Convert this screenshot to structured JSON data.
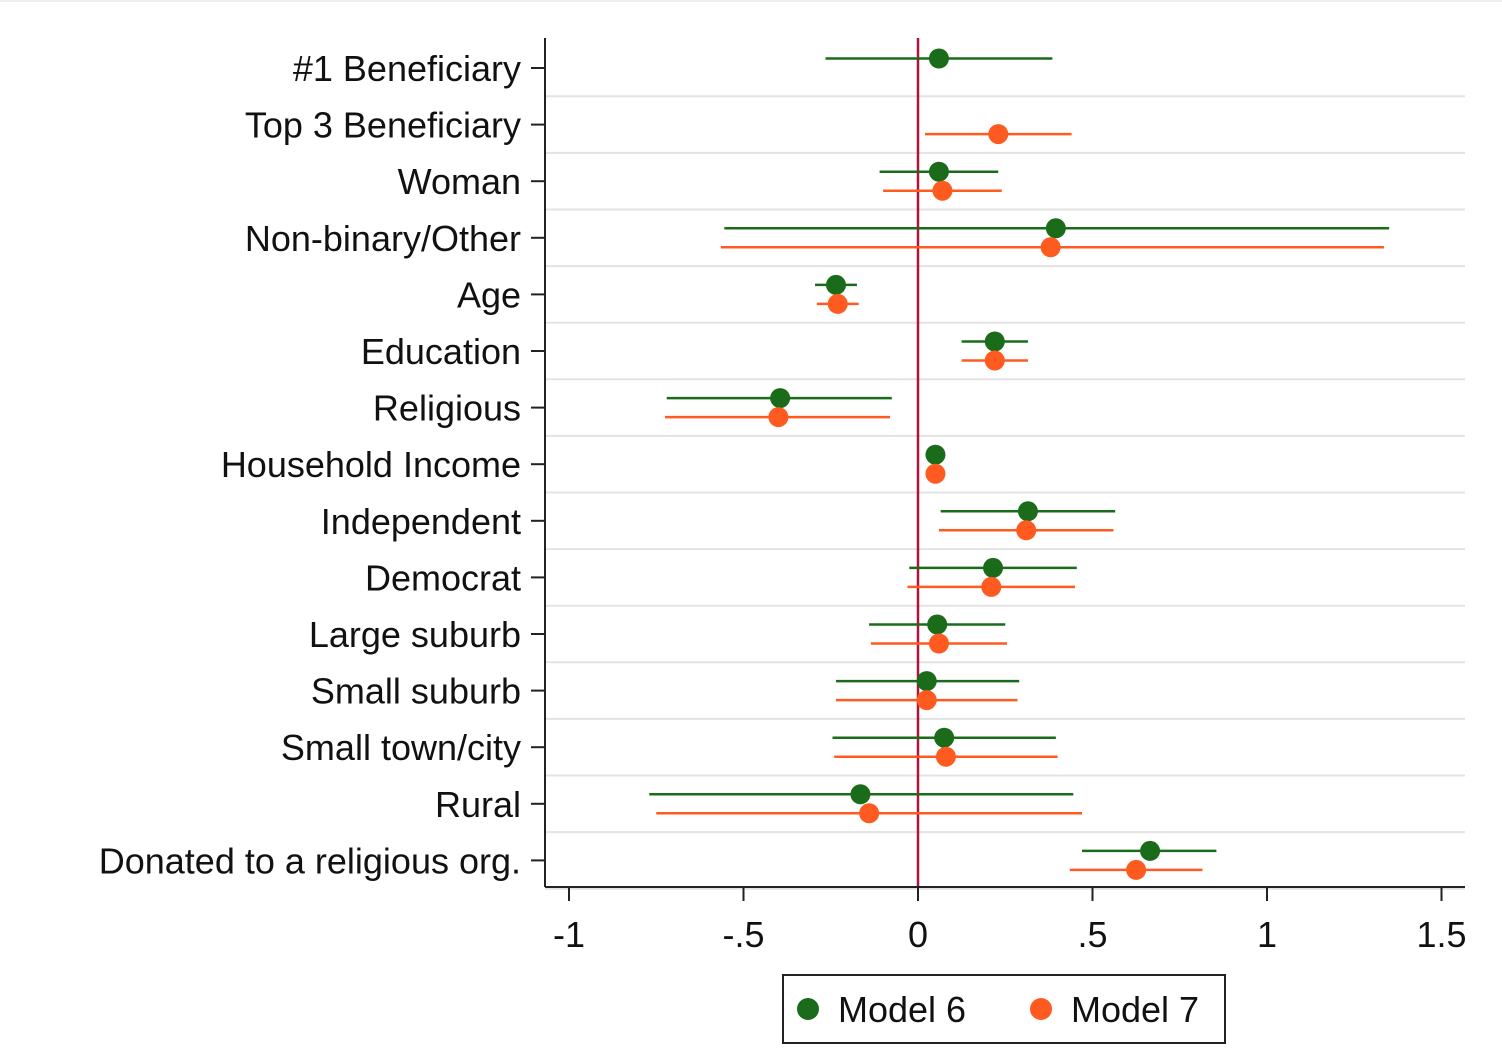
{
  "chart_data": {
    "type": "scatter",
    "subtype": "coefficient-plot",
    "title": "",
    "xlabel": "",
    "ylabel": "",
    "xlim": [
      -1.05,
      1.58
    ],
    "x_ticks": [
      -1,
      -0.5,
      0,
      0.5,
      1,
      1.5
    ],
    "x_tick_labels": [
      "-1",
      "-.5",
      "0",
      ".5",
      "1",
      "1.5"
    ],
    "reference_line_x": 0,
    "grid": true,
    "legend_position": "bottom",
    "categories": [
      "#1 Beneficiary",
      "Top 3 Beneficiary",
      "Woman",
      "Non-binary/Other",
      "Age",
      "Education",
      "Religious",
      "Household Income",
      "Independent",
      "Democrat",
      "Large suburb",
      "Small suburb",
      "Small town/city",
      "Rural",
      "Donated to a religious org."
    ],
    "series": [
      {
        "name": "Model 6",
        "color": "#1a6b1a",
        "points": [
          {
            "est": 0.06,
            "lo": -0.265,
            "hi": 0.385
          },
          null,
          {
            "est": 0.06,
            "lo": -0.11,
            "hi": 0.23
          },
          {
            "est": 0.395,
            "lo": -0.555,
            "hi": 1.35
          },
          {
            "est": -0.235,
            "lo": -0.295,
            "hi": -0.175
          },
          {
            "est": 0.22,
            "lo": 0.125,
            "hi": 0.315
          },
          {
            "est": -0.395,
            "lo": -0.72,
            "hi": -0.075
          },
          {
            "est": 0.05,
            "lo": 0.042,
            "hi": 0.058
          },
          {
            "est": 0.315,
            "lo": 0.065,
            "hi": 0.565
          },
          {
            "est": 0.215,
            "lo": -0.025,
            "hi": 0.455
          },
          {
            "est": 0.055,
            "lo": -0.14,
            "hi": 0.25
          },
          {
            "est": 0.025,
            "lo": -0.235,
            "hi": 0.29
          },
          {
            "est": 0.075,
            "lo": -0.245,
            "hi": 0.395
          },
          {
            "est": -0.165,
            "lo": -0.77,
            "hi": 0.445
          },
          {
            "est": 0.665,
            "lo": 0.47,
            "hi": 0.855
          }
        ]
      },
      {
        "name": "Model 7",
        "color": "#ff5a1f",
        "points": [
          null,
          {
            "est": 0.23,
            "lo": 0.02,
            "hi": 0.44
          },
          {
            "est": 0.07,
            "lo": -0.1,
            "hi": 0.24
          },
          {
            "est": 0.38,
            "lo": -0.565,
            "hi": 1.335
          },
          {
            "est": -0.23,
            "lo": -0.29,
            "hi": -0.17
          },
          {
            "est": 0.22,
            "lo": 0.125,
            "hi": 0.315
          },
          {
            "est": -0.4,
            "lo": -0.725,
            "hi": -0.08
          },
          {
            "est": 0.05,
            "lo": 0.042,
            "hi": 0.058
          },
          {
            "est": 0.31,
            "lo": 0.06,
            "hi": 0.56
          },
          {
            "est": 0.21,
            "lo": -0.03,
            "hi": 0.45
          },
          {
            "est": 0.06,
            "lo": -0.135,
            "hi": 0.255
          },
          {
            "est": 0.025,
            "lo": -0.235,
            "hi": 0.285
          },
          {
            "est": 0.08,
            "lo": -0.24,
            "hi": 0.4
          },
          {
            "est": -0.14,
            "lo": -0.75,
            "hi": 0.47
          },
          {
            "est": 0.625,
            "lo": 0.435,
            "hi": 0.815
          }
        ]
      }
    ]
  }
}
